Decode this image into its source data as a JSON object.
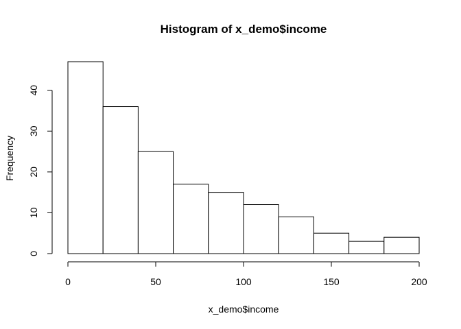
{
  "chart_data": {
    "type": "bar",
    "title": "Histogram of x_demo$income",
    "xlabel": "x_demo$income",
    "ylabel": "Frequency",
    "bins": [
      {
        "start": 0,
        "end": 20,
        "count": 47
      },
      {
        "start": 20,
        "end": 40,
        "count": 36
      },
      {
        "start": 40,
        "end": 60,
        "count": 25
      },
      {
        "start": 60,
        "end": 80,
        "count": 17
      },
      {
        "start": 80,
        "end": 100,
        "count": 15
      },
      {
        "start": 100,
        "end": 120,
        "count": 12
      },
      {
        "start": 120,
        "end": 140,
        "count": 9
      },
      {
        "start": 140,
        "end": 160,
        "count": 5
      },
      {
        "start": 160,
        "end": 180,
        "count": 3
      },
      {
        "start": 180,
        "end": 200,
        "count": 4
      }
    ],
    "xlim": [
      0,
      200
    ],
    "ylim": [
      0,
      47
    ],
    "xticks": [
      0,
      50,
      100,
      150,
      200
    ],
    "yticks": [
      0,
      10,
      20,
      30,
      40
    ],
    "grid": false,
    "bar_fill": "#ffffff",
    "bar_stroke": "#000000"
  }
}
